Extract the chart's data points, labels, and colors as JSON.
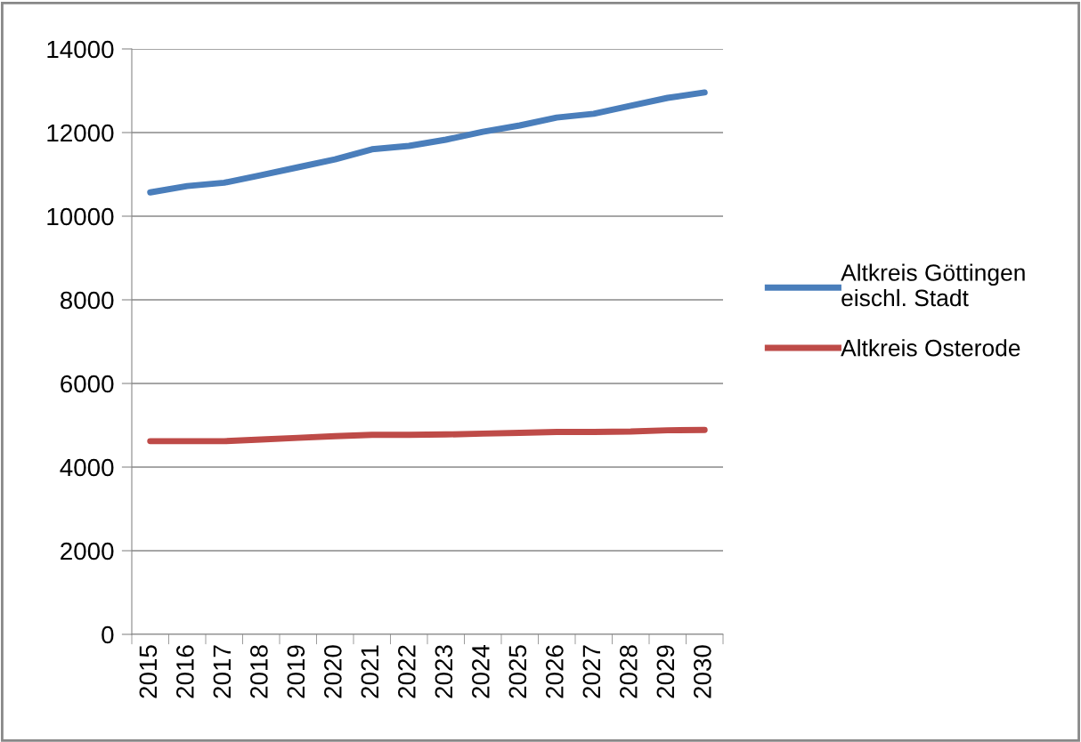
{
  "chart_data": {
    "type": "line",
    "categories": [
      "2015",
      "2016",
      "2017",
      "2018",
      "2019",
      "2020",
      "2021",
      "2022",
      "2023",
      "2024",
      "2025",
      "2026",
      "2027",
      "2028",
      "2029",
      "2030"
    ],
    "series": [
      {
        "name": "Altkreis Göttingen eischl. Stadt",
        "color": "#4a7ebb",
        "values": [
          10570,
          10720,
          10800,
          10980,
          11170,
          11360,
          11600,
          11680,
          11830,
          12020,
          12170,
          12360,
          12450,
          12640,
          12830,
          12960
        ]
      },
      {
        "name": "Altkreis Osterode",
        "color": "#be4b48",
        "values": [
          4620,
          4620,
          4620,
          4660,
          4700,
          4740,
          4770,
          4770,
          4780,
          4800,
          4820,
          4840,
          4840,
          4850,
          4880,
          4890
        ]
      }
    ],
    "ylim": [
      0,
      14000
    ],
    "yticks": [
      0,
      2000,
      4000,
      6000,
      8000,
      10000,
      12000,
      14000
    ],
    "grid": "y",
    "legend": "right",
    "marker": "none",
    "line_style": "solid"
  }
}
